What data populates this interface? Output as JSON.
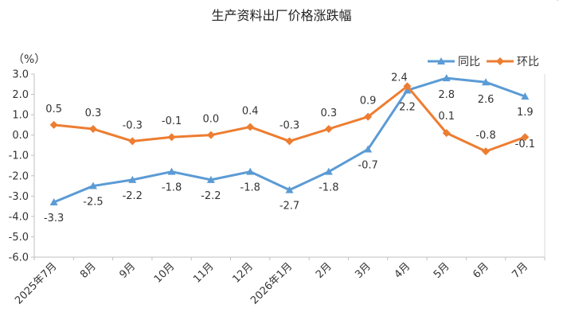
{
  "title": "生产资料出厂价格涨跌幅",
  "corner_mark": "'",
  "chart_data": {
    "type": "line",
    "title": "生产资料出厂价格涨跌幅",
    "ylabel": "（%）",
    "categories": [
      "2025年7月",
      "8月",
      "9月",
      "10月",
      "11月",
      "12月",
      "2026年1月",
      "2月",
      "3月",
      "4月",
      "5月",
      "6月",
      "7月"
    ],
    "ylim": [
      -6.0,
      3.0
    ],
    "yticks": [
      3.0,
      2.0,
      1.0,
      0.0,
      -1.0,
      -2.0,
      -3.0,
      -4.0,
      -5.0,
      -6.0
    ],
    "ytick_labels": [
      "3.0",
      "2.0",
      "1.0",
      "0.0",
      "-1.0",
      "-2.0",
      "-3.0",
      "-4.0",
      "-5.0",
      "-6.0"
    ],
    "grid": false,
    "legend": "top-right",
    "series": [
      {
        "name": "同比",
        "color": "#5B9BD5",
        "marker": "triangle",
        "values": [
          -3.3,
          -2.5,
          -2.2,
          -1.8,
          -2.2,
          -1.8,
          -2.7,
          -1.8,
          -0.7,
          2.2,
          2.8,
          2.6,
          1.9
        ],
        "labels": [
          "-3.3",
          "-2.5",
          "-2.2",
          "-1.8",
          "-2.2",
          "-1.8",
          "-2.7",
          "-1.8",
          "-0.7",
          "2.2",
          "2.8",
          "2.6",
          "1.9"
        ]
      },
      {
        "name": "环比",
        "color": "#ED7D31",
        "marker": "diamond",
        "values": [
          0.5,
          0.3,
          -0.3,
          -0.1,
          0.0,
          0.4,
          -0.3,
          0.3,
          0.9,
          2.4,
          0.1,
          -0.8,
          -0.1
        ],
        "labels": [
          "0.5",
          "0.3",
          "-0.3",
          "-0.1",
          "0.0",
          "0.4",
          "-0.3",
          "0.3",
          "0.9",
          "2.4",
          "0.1",
          "-0.8",
          "-0.1"
        ]
      }
    ]
  }
}
